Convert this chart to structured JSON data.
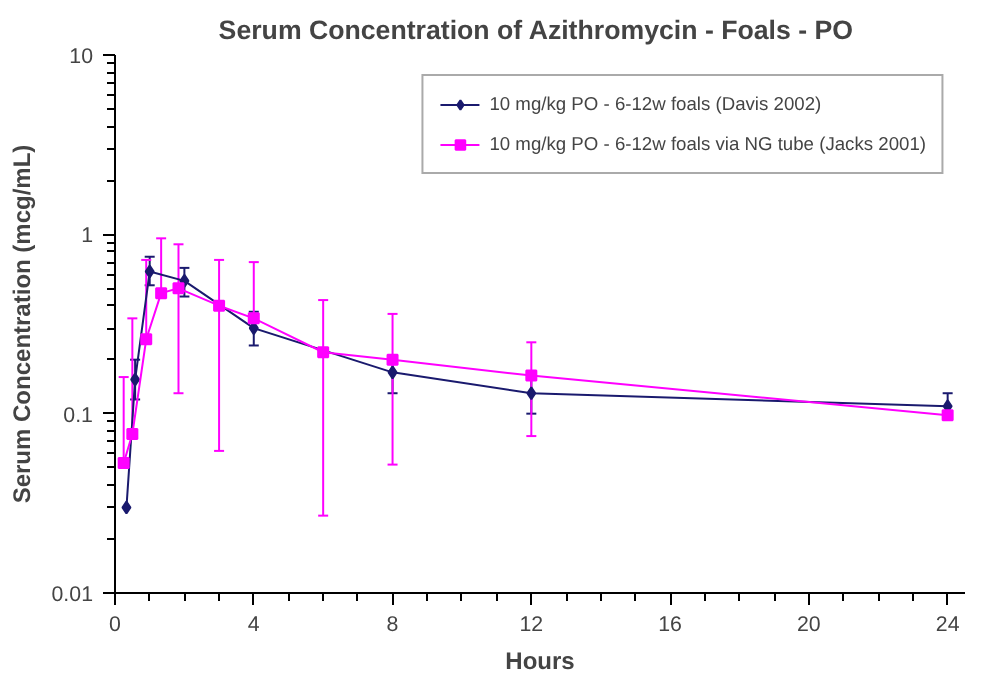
{
  "chart_data": {
    "type": "line",
    "title": "Serum Concentration of Azithromycin  - Foals - PO",
    "xlabel": "Hours",
    "ylabel": "Serum Concentration (mcg/mL)",
    "xlim": [
      0,
      24.5
    ],
    "xticks": [
      0,
      4,
      8,
      12,
      16,
      20,
      24
    ],
    "ylim": [
      0.01,
      10
    ],
    "yticks": [
      0.01,
      0.1,
      1,
      10
    ],
    "log": "y",
    "grid": false,
    "legend": "top right",
    "line_style": "solid",
    "series": [
      {
        "name": "10 mg/kg PO - 6-12w foals (Davis 2002)",
        "color": "#1a1a6e",
        "marker": "diamond",
        "x": [
          0.33,
          0.58,
          1,
          2,
          4,
          8,
          12,
          24
        ],
        "values": [
          0.03,
          0.155,
          0.62,
          0.55,
          0.3,
          0.17,
          0.13,
          0.11
        ],
        "errors": [
          null,
          [
            0.12,
            0.2
          ],
          [
            0.52,
            0.75
          ],
          [
            0.45,
            0.65
          ],
          [
            0.24,
            0.37
          ],
          [
            0.13,
            0.21
          ],
          [
            0.1,
            0.16
          ],
          [
            0.1,
            0.13
          ]
        ]
      },
      {
        "name": "10 mg/kg PO - 6-12w foals via NG tube (Jacks 2001)",
        "color": "#ff00ff",
        "marker": "square",
        "x": [
          0.25,
          0.5,
          0.9,
          1.33,
          1.83,
          3,
          4,
          6,
          8,
          12,
          24
        ],
        "values": [
          0.053,
          0.077,
          0.26,
          0.47,
          0.5,
          0.4,
          0.34,
          0.22,
          0.2,
          0.163,
          0.098
        ],
        "errors": [
          [
            0.053,
            0.16
          ],
          [
            0.077,
            0.34
          ],
          [
            0.26,
            0.72
          ],
          [
            0.47,
            0.95
          ],
          [
            0.13,
            0.88
          ],
          [
            0.062,
            0.72
          ],
          [
            0.34,
            0.7
          ],
          [
            0.027,
            0.43
          ],
          [
            0.052,
            0.36
          ],
          [
            0.075,
            0.25
          ],
          null
        ]
      }
    ]
  }
}
